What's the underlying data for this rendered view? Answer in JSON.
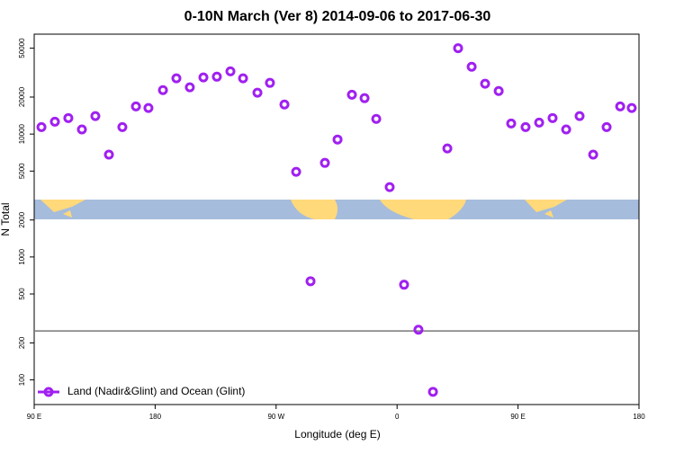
{
  "chart_data": {
    "type": "scatter",
    "title": "0-10N March (Ver 8)   2014-09-06 to 2017-06-30",
    "x_label": "Longitude (deg E)",
    "y_label": "N Total",
    "log_y": true,
    "legend": "bottom-left",
    "grid": false,
    "xlim": [
      90,
      540
    ],
    "xticks": [
      {
        "value": 90,
        "label": "90 E"
      },
      {
        "value": 180,
        "label": "180"
      },
      {
        "value": 270,
        "label": "90 W"
      },
      {
        "value": 360,
        "label": "0"
      },
      {
        "value": 450,
        "label": "90 E"
      },
      {
        "value": 540,
        "label": "180"
      }
    ],
    "ylim": [
      63,
      65000
    ],
    "yticks": [
      100,
      200,
      500,
      1000,
      2000,
      5000,
      10000,
      20000,
      50000
    ],
    "hline": 250,
    "series": [
      {
        "name": "Land (Nadir&Glint) and Ocean (Glint)",
        "color": "#a020f0",
        "x": [
          95.4,
          105.4,
          115.4,
          125.5,
          135.5,
          145.6,
          155.6,
          165.7,
          175,
          185.8,
          195.8,
          205.8,
          215.9,
          225.9,
          236,
          245.4,
          256.1,
          265.4,
          276.2,
          284.9,
          295.6,
          306.3,
          315.7,
          326.4,
          335.8,
          344.5,
          354.5,
          365.2,
          375.9,
          386.7,
          397.4,
          405.4,
          415.5,
          425.5,
          435.6,
          444.9,
          455.6,
          465.7,
          475.7,
          485.8,
          495.8,
          505.9,
          515.9,
          526,
          534.6
        ],
        "values": [
          11400,
          12600,
          13500,
          10900,
          14000,
          6800,
          11400,
          16800,
          16300,
          22800,
          28400,
          24000,
          28900,
          29300,
          32400,
          28400,
          21700,
          26100,
          17400,
          4930,
          635,
          5830,
          9030,
          20900,
          19600,
          13300,
          3700,
          595,
          256,
          80,
          7640,
          50000,
          35300,
          25700,
          22400,
          12200,
          11400,
          12400,
          13500,
          10900,
          14000,
          6800,
          11400,
          16800,
          16300
        ]
      }
    ]
  }
}
